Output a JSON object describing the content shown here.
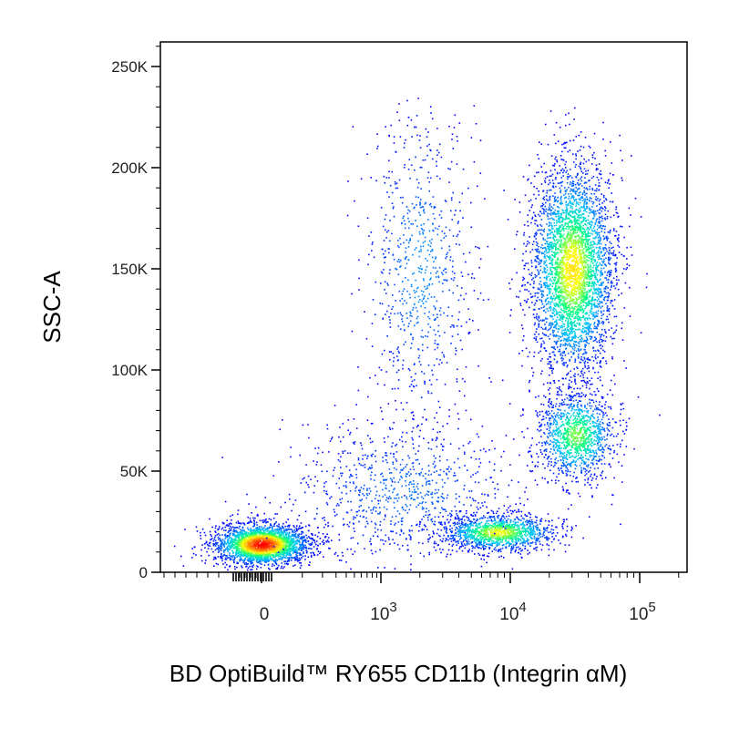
{
  "chart_data": {
    "type": "scatter",
    "title": "",
    "xlabel": "BD OptiBuild™ RY655 CD11b (Integrin αM)",
    "ylabel": "SSC-A",
    "x_scale": "biexponential",
    "x_ticks": [
      {
        "value": 0,
        "base": "0",
        "exp": ""
      },
      {
        "value": 1000,
        "base": "10",
        "exp": "3"
      },
      {
        "value": 10000,
        "base": "10",
        "exp": "4"
      },
      {
        "value": 100000,
        "base": "10",
        "exp": "5"
      }
    ],
    "y_ticks": [
      {
        "value": 0,
        "label": "0"
      },
      {
        "value": 50000,
        "label": "50K"
      },
      {
        "value": 100000,
        "label": "100K"
      },
      {
        "value": 150000,
        "label": "150K"
      },
      {
        "value": 200000,
        "label": "200K"
      },
      {
        "value": 250000,
        "label": "250K"
      }
    ],
    "ylim": [
      0,
      262144
    ],
    "grid": false,
    "legend": "none",
    "color_map": [
      "#0000ff",
      "#00bfff",
      "#00ff80",
      "#ffff00",
      "#ff8000",
      "#ff0000"
    ],
    "populations": [
      {
        "x_center": 0,
        "y_center": 14000,
        "x_spread_decades": 0.18,
        "y_spread": 5000,
        "events": 2600,
        "peak_density": 1.0
      },
      {
        "x_center": 8000,
        "y_center": 20000,
        "x_spread_decades": 0.22,
        "y_spread": 4500,
        "events": 1300,
        "peak_density": 0.6
      },
      {
        "x_center": 30000,
        "y_center": 150000,
        "x_spread_decades": 0.16,
        "y_spread": 26000,
        "events": 3800,
        "peak_density": 0.65
      },
      {
        "x_center": 32000,
        "y_center": 68000,
        "x_spread_decades": 0.15,
        "y_spread": 11000,
        "events": 1200,
        "peak_density": 0.5
      },
      {
        "x_center": 2000,
        "y_center": 150000,
        "x_spread_decades": 0.22,
        "y_spread": 40000,
        "events": 750,
        "peak_density": 0.15
      },
      {
        "x_center": 1500,
        "y_center": 40000,
        "x_spread_decades": 0.45,
        "y_spread": 18000,
        "events": 900,
        "peak_density": 0.12
      }
    ]
  }
}
